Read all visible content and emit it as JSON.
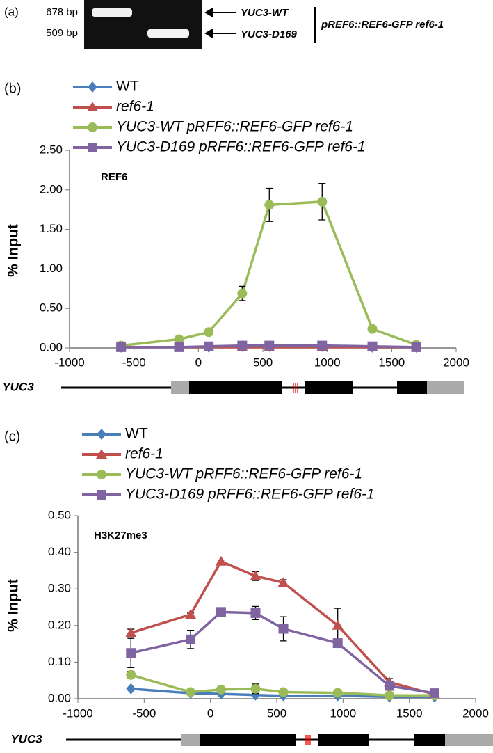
{
  "panel_a": {
    "panel_label": "(a)",
    "band_labels": [
      "678 bp",
      "509 bp"
    ],
    "arrow_labels": [
      "YUC3-WT",
      "YUC3-D169"
    ],
    "bracket_label": "pREF6::REF6-GFP ref6-1"
  },
  "chart_data": [
    {
      "type": "line",
      "panel_label": "(b)",
      "annotation": "REF6",
      "y_label": "% Input",
      "gene_label": "YUC3",
      "x": [
        -600,
        -150,
        80,
        340,
        550,
        960,
        1350,
        1690
      ],
      "xlim": [
        -1000,
        2000
      ],
      "xticks": [
        -1000,
        -500,
        0,
        500,
        1000,
        1500,
        2000
      ],
      "ylim": [
        0,
        2.5
      ],
      "yticks": [
        {
          "value": 0,
          "label": "0.00"
        },
        {
          "value": 0.5,
          "label": "0.50"
        },
        {
          "value": 1,
          "label": "1.00"
        },
        {
          "value": 1.5,
          "label": "1.50"
        },
        {
          "value": 2,
          "label": "2.00"
        },
        {
          "value": 2.5,
          "label": "2.50"
        }
      ],
      "series": [
        {
          "name": "WT",
          "color": "#4a7ebb",
          "marker": "diamond",
          "values": [
            0.01,
            0.01,
            0.01,
            0.02,
            0.02,
            0.02,
            0.01,
            0.01
          ]
        },
        {
          "name": "ref6-1",
          "color": "#c0504d",
          "marker": "triangle",
          "values": [
            0.01,
            0.01,
            0.01,
            0.01,
            0.01,
            0.01,
            0.01,
            0.01
          ]
        },
        {
          "name": "YUC3-WT pRFF6::REF6-GFP ref6-1",
          "color": "#9bbb59",
          "marker": "circle",
          "values": [
            0.03,
            0.11,
            0.2,
            0.69,
            1.81,
            1.85,
            0.24,
            0.04
          ],
          "errors": [
            0.01,
            0.01,
            0.01,
            0.09,
            0.21,
            0.23,
            0.02,
            0.01
          ]
        },
        {
          "name": "YUC3-D169  pRFF6::REF6-GFP ref6-1",
          "color": "#8064a2",
          "marker": "square",
          "values": [
            0.01,
            0.01,
            0.02,
            0.03,
            0.03,
            0.03,
            0.02,
            0.01
          ]
        }
      ]
    },
    {
      "type": "line",
      "panel_label": "(c)",
      "annotation": "H3K27me3",
      "y_label": "% Input",
      "gene_label": "YUC3",
      "x": [
        -600,
        -150,
        80,
        340,
        550,
        960,
        1350,
        1690
      ],
      "xlim": [
        -1000,
        2000
      ],
      "xticks": [
        -1000,
        -500,
        0,
        500,
        1000,
        1500,
        2000
      ],
      "ylim": [
        0,
        0.5
      ],
      "yticks": [
        {
          "value": 0,
          "label": "0.00"
        },
        {
          "value": 0.1,
          "label": "0.10"
        },
        {
          "value": 0.2,
          "label": "0.20"
        },
        {
          "value": 0.3,
          "label": "0.30"
        },
        {
          "value": 0.4,
          "label": "0.40"
        },
        {
          "value": 0.5,
          "label": "0.50"
        }
      ],
      "series": [
        {
          "name": "WT",
          "color": "#4a7ebb",
          "marker": "diamond",
          "values": [
            0.027,
            0.015,
            0.013,
            0.01,
            0.008,
            0.008,
            0.005,
            0.005
          ]
        },
        {
          "name": "ref6-1",
          "color": "#c0504d",
          "marker": "triangle",
          "values": [
            0.18,
            0.23,
            0.375,
            0.335,
            0.317,
            0.2,
            0.045,
            0.012
          ],
          "errors": [
            0.01,
            0.004,
            0.004,
            0.012,
            0.008,
            0.047,
            0.01,
            0.003
          ]
        },
        {
          "name": "YUC3-WT pRFF6::REF6-GFP ref6-1",
          "color": "#9bbb59",
          "marker": "circle",
          "values": [
            0.065,
            0.018,
            0.025,
            0.027,
            0.018,
            0.016,
            0.009,
            0.009
          ],
          "errors": [
            0.01,
            0.003,
            0.004,
            0.013,
            0.004,
            0.003,
            0.002,
            0.002
          ]
        },
        {
          "name": "YUC3-D169  pRFF6::REF6-GFP ref6-1",
          "color": "#8064a2",
          "marker": "square",
          "values": [
            0.125,
            0.162,
            0.237,
            0.234,
            0.191,
            0.152,
            0.035,
            0.015
          ],
          "errors": [
            0.04,
            0.025,
            0.005,
            0.018,
            0.033,
            0.01,
            0.01,
            0.003
          ]
        }
      ]
    }
  ]
}
